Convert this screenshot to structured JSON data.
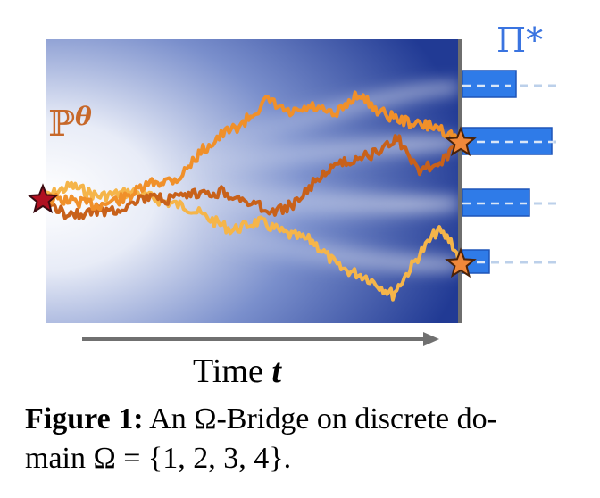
{
  "figure": {
    "p_theta_label": "ℙ",
    "p_theta_superscript": "θ",
    "pi_star_label": "Π*",
    "time_label": "Time ",
    "time_var": "t",
    "colors": {
      "background_dark": "#1f3a93",
      "background_light": "#ffffff",
      "path_orange": "#f0902a",
      "path_light": "#f5b54a",
      "path_dark": "#c8611a",
      "p_theta_color": "#c7682a",
      "pi_color": "#3a74e0",
      "bar_fill": "#2f7be8",
      "dashed_line": "#bcd0ea",
      "start_star": "#b01020",
      "end_star": "#f0883a",
      "axis_arrow": "#707070",
      "right_edge": "#707070"
    },
    "bars": [
      {
        "index": 1,
        "value": 0.6
      },
      {
        "index": 2,
        "value": 1.0
      },
      {
        "index": 3,
        "value": 0.75
      },
      {
        "index": 4,
        "value": 0.3
      }
    ]
  },
  "caption": {
    "label": "Figure 1:",
    "text_part1": " An ",
    "omega": "Ω",
    "text_part2": "-Bridge on discrete do-",
    "line2_part1": "main ",
    "line2_math": "Ω = {1, 2, 3, 4}",
    "line2_end": "."
  }
}
